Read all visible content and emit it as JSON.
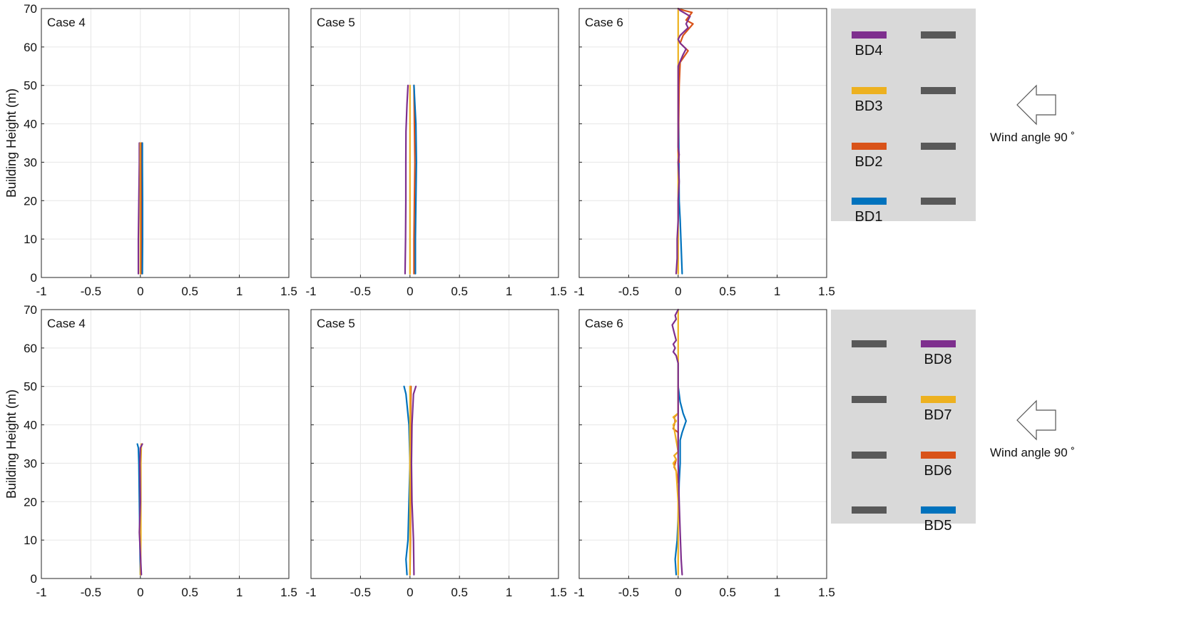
{
  "colors": {
    "BD1": "#0072BD",
    "BD2": "#D95319",
    "BD3": "#EDB120",
    "BD4": "#7E2F8E",
    "BD5": "#0072BD",
    "BD6": "#D95319",
    "BD7": "#EDB120",
    "BD8": "#7E2F8E",
    "grid": "#e6e6e6",
    "axis": "#262626",
    "legend_bg": "#d9d9d9",
    "legend_bar": "#595959"
  },
  "rows": [
    {
      "ylabel": "Building Height (m)",
      "wind_label": "Wind angle 90 ˚",
      "wind_icon": "left-arrow-icon",
      "legend": {
        "left_column": [
          {
            "label": "BD4",
            "series": "BD4"
          },
          {
            "label": "BD3",
            "series": "BD3"
          },
          {
            "label": "BD2",
            "series": "BD2"
          },
          {
            "label": "BD1",
            "series": "BD1"
          }
        ],
        "right_column": [
          {},
          {},
          {},
          {}
        ]
      }
    },
    {
      "ylabel": "Building Height (m)",
      "wind_label": "Wind angle 90 ˚",
      "wind_icon": "left-arrow-icon",
      "legend": {
        "left_column": [
          {},
          {},
          {},
          {}
        ],
        "right_column": [
          {
            "label": "BD8",
            "series": "BD8"
          },
          {
            "label": "BD7",
            "series": "BD7"
          },
          {
            "label": "BD6",
            "series": "BD6"
          },
          {
            "label": "BD5",
            "series": "BD5"
          }
        ]
      }
    }
  ],
  "chart_data": [
    {
      "type": "line",
      "panel_label": "Case 4",
      "xlim": [
        -1,
        1.5
      ],
      "ylim": [
        0,
        70
      ],
      "xticks": [
        "-1",
        "-0.5",
        "0",
        "0.5",
        "1",
        "1.5"
      ],
      "yticks": [
        "0",
        "10",
        "20",
        "30",
        "40",
        "50",
        "60",
        "70"
      ],
      "grid": true,
      "series": [
        {
          "name": "BD4",
          "points": [
            [
              -0.02,
              1
            ],
            [
              -0.02,
              10
            ],
            [
              -0.015,
              20
            ],
            [
              -0.01,
              30
            ],
            [
              -0.01,
              35
            ]
          ]
        },
        {
          "name": "BD3",
          "points": [
            [
              0.0,
              1
            ],
            [
              0.0,
              10
            ],
            [
              0.0,
              20
            ],
            [
              0.0,
              30
            ],
            [
              0.0,
              35
            ]
          ]
        },
        {
          "name": "BD2",
          "points": [
            [
              0.01,
              1
            ],
            [
              0.01,
              10
            ],
            [
              0.01,
              20
            ],
            [
              0.01,
              30
            ],
            [
              0.01,
              35
            ]
          ]
        },
        {
          "name": "BD1",
          "points": [
            [
              0.02,
              1
            ],
            [
              0.022,
              10
            ],
            [
              0.022,
              20
            ],
            [
              0.02,
              30
            ],
            [
              0.02,
              35
            ]
          ]
        }
      ]
    },
    {
      "type": "line",
      "panel_label": "Case 5",
      "xlim": [
        -1,
        1.5
      ],
      "ylim": [
        0,
        70
      ],
      "xticks": [
        "-1",
        "-0.5",
        "0",
        "0.5",
        "1",
        "1.5"
      ],
      "yticks": [
        "0",
        "10",
        "20",
        "30",
        "40",
        "50",
        "60",
        "70"
      ],
      "grid": true,
      "series": [
        {
          "name": "BD4",
          "points": [
            [
              -0.05,
              1
            ],
            [
              -0.045,
              10
            ],
            [
              -0.042,
              20
            ],
            [
              -0.042,
              30
            ],
            [
              -0.04,
              38
            ],
            [
              -0.03,
              45
            ],
            [
              -0.02,
              50
            ]
          ]
        },
        {
          "name": "BD3",
          "points": [
            [
              0.0,
              1
            ],
            [
              0.0,
              10
            ],
            [
              0.0,
              20
            ],
            [
              0.0,
              30
            ],
            [
              0.0,
              40
            ],
            [
              0.0,
              50
            ]
          ]
        },
        {
          "name": "BD2",
          "points": [
            [
              0.04,
              1
            ],
            [
              0.04,
              10
            ],
            [
              0.045,
              20
            ],
            [
              0.05,
              30
            ],
            [
              0.045,
              40
            ],
            [
              0.04,
              50
            ]
          ]
        },
        {
          "name": "BD1",
          "points": [
            [
              0.055,
              1
            ],
            [
              0.055,
              10
            ],
            [
              0.06,
              20
            ],
            [
              0.065,
              30
            ],
            [
              0.06,
              40
            ],
            [
              0.05,
              45
            ],
            [
              0.04,
              50
            ]
          ]
        }
      ]
    },
    {
      "type": "line",
      "panel_label": "Case 6",
      "xlim": [
        -1,
        1.5
      ],
      "ylim": [
        0,
        70
      ],
      "xticks": [
        "-1",
        "-0.5",
        "0",
        "0.5",
        "1",
        "1.5"
      ],
      "yticks": [
        "0",
        "10",
        "20",
        "30",
        "40",
        "50",
        "60",
        "70"
      ],
      "grid": true,
      "series": [
        {
          "name": "BD1",
          "points": [
            [
              0.04,
              1
            ],
            [
              0.03,
              8
            ],
            [
              0.02,
              15
            ],
            [
              0.01,
              20
            ],
            [
              0.005,
              40
            ],
            [
              0.005,
              55
            ]
          ]
        },
        {
          "name": "BD3",
          "points": [
            [
              0.0,
              1
            ],
            [
              0.0,
              10
            ],
            [
              0.0,
              30
            ],
            [
              0.0,
              50
            ],
            [
              0.0,
              70
            ]
          ]
        },
        {
          "name": "BD2",
          "points": [
            [
              0.01,
              30
            ],
            [
              0.0,
              33
            ],
            [
              0.01,
              50
            ],
            [
              0.02,
              56
            ],
            [
              0.1,
              59
            ],
            [
              0.02,
              61
            ],
            [
              0.05,
              63
            ],
            [
              0.15,
              66
            ],
            [
              0.08,
              67
            ],
            [
              0.14,
              69
            ],
            [
              0.06,
              69.5
            ],
            [
              0.0,
              70
            ]
          ]
        },
        {
          "name": "BD4",
          "points": [
            [
              -0.02,
              1
            ],
            [
              -0.01,
              5
            ],
            [
              -0.01,
              10
            ],
            [
              0.0,
              15
            ],
            [
              0.0,
              20
            ],
            [
              0.01,
              25
            ],
            [
              0.0,
              30
            ],
            [
              0.01,
              32
            ],
            [
              0.0,
              34
            ],
            [
              0.0,
              45
            ],
            [
              0.0,
              55
            ],
            [
              0.05,
              58
            ],
            [
              0.08,
              59.5
            ],
            [
              0.02,
              61
            ],
            [
              0.0,
              62
            ],
            [
              0.02,
              63
            ],
            [
              0.1,
              65
            ],
            [
              0.08,
              66
            ],
            [
              0.12,
              68
            ],
            [
              0.02,
              69.5
            ],
            [
              0.0,
              70
            ]
          ]
        }
      ]
    },
    {
      "type": "line",
      "panel_label": "Case 4",
      "xlim": [
        -1,
        1.5
      ],
      "ylim": [
        0,
        70
      ],
      "xticks": [
        "-1",
        "-0.5",
        "0",
        "0.5",
        "1",
        "1.5"
      ],
      "yticks": [
        "0",
        "10",
        "20",
        "30",
        "40",
        "50",
        "60",
        "70"
      ],
      "grid": true,
      "series": [
        {
          "name": "BD5",
          "points": [
            [
              0.0,
              1
            ],
            [
              -0.005,
              10
            ],
            [
              -0.01,
              20
            ],
            [
              -0.015,
              30
            ],
            [
              -0.02,
              34
            ],
            [
              -0.03,
              35
            ]
          ]
        },
        {
          "name": "BD6",
          "points": [
            [
              0.005,
              1
            ],
            [
              0.0,
              10
            ],
            [
              0.0,
              20
            ],
            [
              0.0,
              30
            ],
            [
              0.01,
              35
            ]
          ]
        },
        {
          "name": "BD7",
          "points": [
            [
              0.0,
              1
            ],
            [
              0.005,
              10
            ],
            [
              0.005,
              20
            ],
            [
              0.005,
              30
            ],
            [
              0.01,
              35
            ]
          ]
        },
        {
          "name": "BD8",
          "points": [
            [
              0.01,
              1
            ],
            [
              -0.01,
              12
            ],
            [
              0.0,
              20
            ],
            [
              -0.005,
              30
            ],
            [
              0.0,
              34
            ],
            [
              0.02,
              35
            ]
          ]
        }
      ]
    },
    {
      "type": "line",
      "panel_label": "Case 5",
      "xlim": [
        -1,
        1.5
      ],
      "ylim": [
        0,
        70
      ],
      "xticks": [
        "-1",
        "-0.5",
        "0",
        "0.5",
        "1",
        "1.5"
      ],
      "yticks": [
        "0",
        "10",
        "20",
        "30",
        "40",
        "50",
        "60",
        "70"
      ],
      "grid": true,
      "series": [
        {
          "name": "BD5",
          "points": [
            [
              -0.03,
              1
            ],
            [
              -0.04,
              5
            ],
            [
              -0.02,
              10
            ],
            [
              -0.01,
              20
            ],
            [
              0.0,
              30
            ],
            [
              -0.01,
              40
            ],
            [
              -0.04,
              48
            ],
            [
              -0.06,
              50
            ]
          ]
        },
        {
          "name": "BD6",
          "points": [
            [
              0.0,
              1
            ],
            [
              0.005,
              10
            ],
            [
              0.005,
              20
            ],
            [
              0.005,
              30
            ],
            [
              0.005,
              40
            ],
            [
              0.01,
              50
            ]
          ]
        },
        {
          "name": "BD7",
          "points": [
            [
              0.0,
              1
            ],
            [
              0.0,
              10
            ],
            [
              0.0,
              20
            ],
            [
              0.0,
              30
            ],
            [
              0.0,
              40
            ],
            [
              0.0,
              50
            ]
          ]
        },
        {
          "name": "BD8",
          "points": [
            [
              0.04,
              1
            ],
            [
              0.035,
              10
            ],
            [
              0.02,
              20
            ],
            [
              0.015,
              30
            ],
            [
              0.02,
              40
            ],
            [
              0.035,
              48
            ],
            [
              0.06,
              50
            ]
          ]
        }
      ]
    },
    {
      "type": "line",
      "panel_label": "Case 6",
      "xlim": [
        -1,
        1.5
      ],
      "ylim": [
        0,
        70
      ],
      "xticks": [
        "-1",
        "-0.5",
        "0",
        "0.5",
        "1",
        "1.5"
      ],
      "yticks": [
        "0",
        "10",
        "20",
        "30",
        "40",
        "50",
        "60",
        "70"
      ],
      "grid": true,
      "series": [
        {
          "name": "BD5",
          "points": [
            [
              -0.02,
              1
            ],
            [
              -0.03,
              5
            ],
            [
              -0.01,
              10
            ],
            [
              0.0,
              16
            ],
            [
              0.005,
              20
            ],
            [
              0.01,
              25
            ],
            [
              0.02,
              30
            ],
            [
              0.02,
              36
            ],
            [
              0.04,
              38
            ],
            [
              0.08,
              41
            ],
            [
              0.05,
              43
            ],
            [
              0.04,
              44
            ],
            [
              0.02,
              46
            ],
            [
              0.0,
              50
            ],
            [
              0.0,
              56
            ]
          ]
        },
        {
          "name": "BD6",
          "points": [
            [
              0.0,
              25
            ],
            [
              -0.02,
              28
            ],
            [
              -0.04,
              29
            ],
            [
              -0.02,
              31
            ],
            [
              -0.04,
              32
            ],
            [
              0.0,
              33
            ],
            [
              0.0,
              38
            ],
            [
              -0.05,
              39
            ],
            [
              -0.03,
              41
            ],
            [
              -0.04,
              42
            ],
            [
              0.0,
              43
            ],
            [
              0.0,
              50
            ]
          ]
        },
        {
          "name": "BD7",
          "points": [
            [
              0.0,
              1
            ],
            [
              0.0,
              10
            ],
            [
              0.0,
              20
            ],
            [
              -0.02,
              28
            ],
            [
              -0.05,
              30
            ],
            [
              -0.02,
              31
            ],
            [
              -0.04,
              32
            ],
            [
              0.0,
              33
            ],
            [
              -0.04,
              39
            ],
            [
              -0.05,
              40
            ],
            [
              -0.02,
              41
            ],
            [
              -0.05,
              42
            ],
            [
              0.0,
              43
            ],
            [
              0.0,
              50
            ],
            [
              0.0,
              70
            ]
          ]
        },
        {
          "name": "BD8",
          "points": [
            [
              0.04,
              1
            ],
            [
              0.03,
              5
            ],
            [
              0.02,
              12
            ],
            [
              0.01,
              20
            ],
            [
              0.0,
              30
            ],
            [
              0.0,
              50
            ],
            [
              0.0,
              56
            ],
            [
              -0.02,
              58
            ],
            [
              -0.05,
              59
            ],
            [
              -0.03,
              60
            ],
            [
              -0.05,
              61
            ],
            [
              -0.02,
              62
            ],
            [
              -0.03,
              63
            ],
            [
              -0.04,
              64
            ],
            [
              -0.06,
              66
            ],
            [
              -0.02,
              67.5
            ],
            [
              -0.03,
              68.5
            ],
            [
              0.0,
              70
            ]
          ]
        }
      ]
    }
  ]
}
